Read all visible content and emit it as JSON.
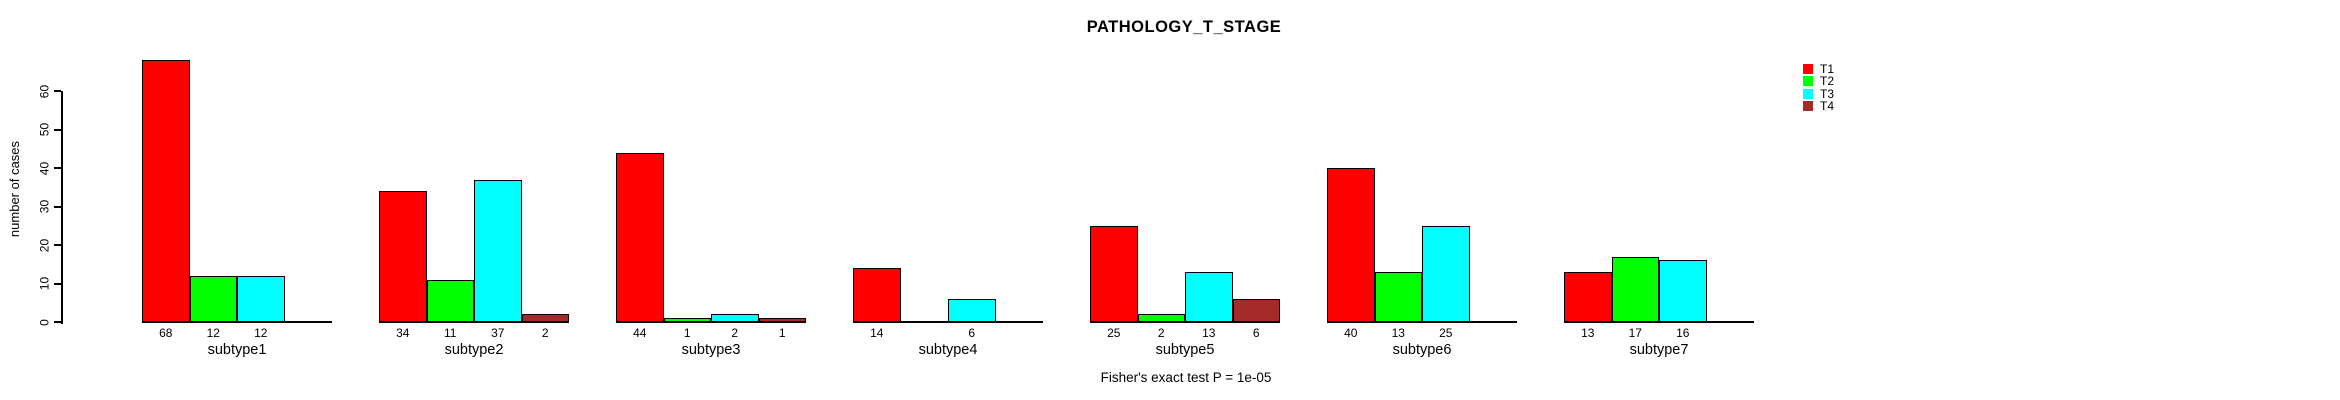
{
  "chart_data": {
    "type": "bar",
    "title": "PATHOLOGY_T_STAGE",
    "xlabel": "",
    "ylabel": "number of cases",
    "footer": "Fisher's exact test P = 1e-05",
    "ylim": [
      0,
      60
    ],
    "yticks": [
      0,
      10,
      20,
      30,
      40,
      50,
      60
    ],
    "grid": false,
    "legend_position": "right",
    "bar_border_color": "#000000",
    "categories": [
      "subtype1",
      "subtype2",
      "subtype3",
      "subtype4",
      "subtype5",
      "subtype6",
      "subtype7"
    ],
    "series": [
      {
        "name": "T1",
        "color": "#FF0000",
        "values": [
          68,
          34,
          44,
          14,
          25,
          40,
          13
        ]
      },
      {
        "name": "T2",
        "color": "#00FF00",
        "values": [
          12,
          11,
          1,
          null,
          2,
          13,
          17
        ]
      },
      {
        "name": "T3",
        "color": "#00FFFF",
        "values": [
          12,
          37,
          2,
          6,
          13,
          25,
          16
        ]
      },
      {
        "name": "T4",
        "color": "#A52A2A",
        "values": [
          null,
          2,
          1,
          null,
          6,
          null,
          null
        ]
      }
    ]
  }
}
